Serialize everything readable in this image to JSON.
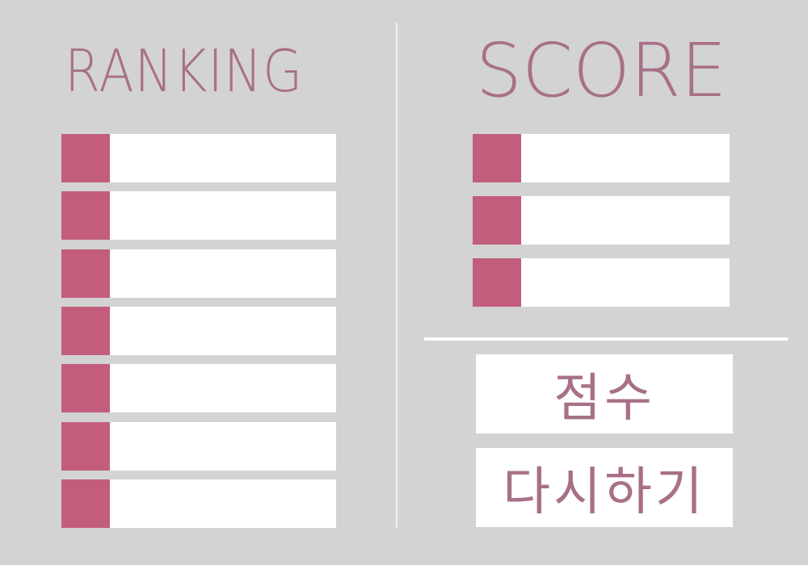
{
  "ranking": {
    "title": "RANKING",
    "entries": [
      {
        "text": ""
      },
      {
        "text": ""
      },
      {
        "text": ""
      },
      {
        "text": ""
      },
      {
        "text": ""
      },
      {
        "text": ""
      },
      {
        "text": ""
      }
    ]
  },
  "score": {
    "title": "SCORE",
    "entries": [
      {
        "text": ""
      },
      {
        "text": ""
      },
      {
        "text": ""
      }
    ]
  },
  "buttons": {
    "score_label": "점수",
    "retry_label": "다시하기"
  },
  "colors": {
    "background": "#d3d3d3",
    "accent": "#c25e7b",
    "title_text": "#a87088",
    "slot_bg": "#ffffff"
  }
}
